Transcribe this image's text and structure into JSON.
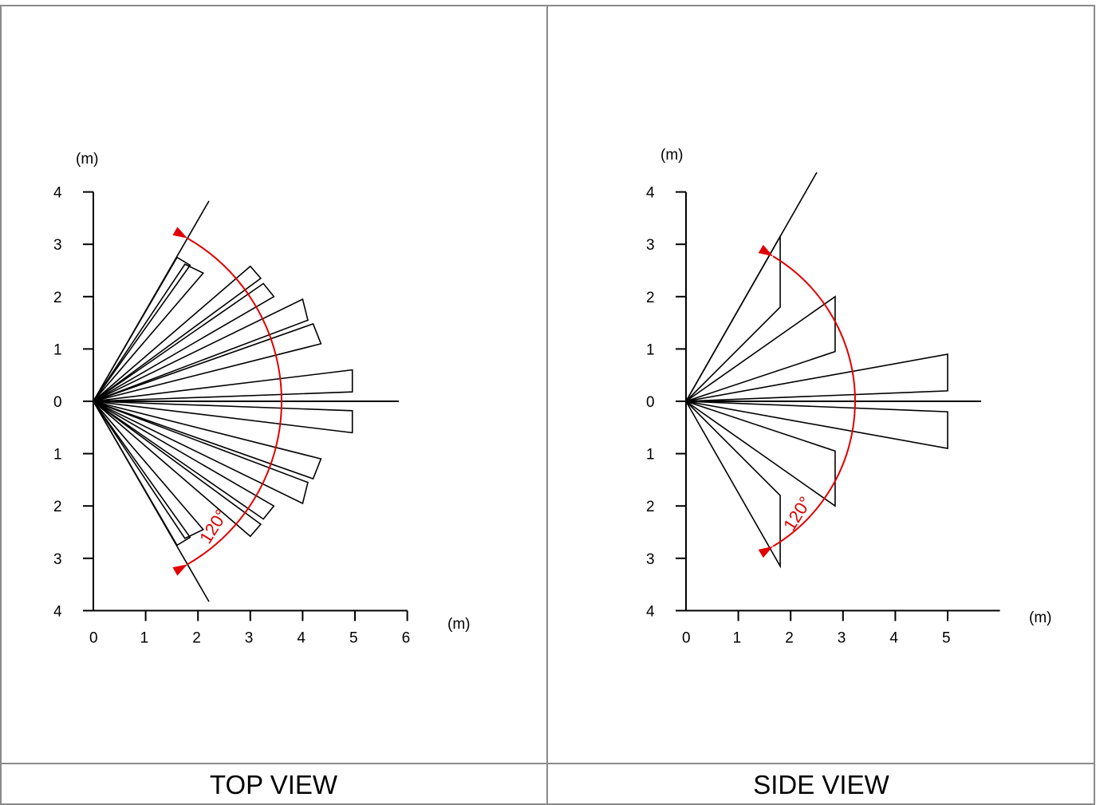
{
  "panels": [
    {
      "id": "top",
      "caption": "TOP VIEW",
      "x_unit": "(m)",
      "y_unit": "(m)",
      "x_ticks": [
        "0",
        "1",
        "2",
        "3",
        "4",
        "5",
        "6"
      ],
      "y_ticks": [
        "4",
        "3",
        "2",
        "1",
        "0",
        "1",
        "2",
        "3",
        "4"
      ],
      "angle_label": "120°",
      "beam_pairs": [
        [
          [
            2.6,
            2.7
          ],
          [
            2.45,
            2.65
          ]
        ],
        [
          [
            1.7,
            2.45
          ],
          [
            1.5,
            2.2
          ]
        ],
        [
          [
            1.65,
            4.05
          ],
          [
            1.3,
            4.25
          ]
        ],
        [
          [
            1.05,
            4.35
          ],
          [
            0.75,
            4.15
          ]
        ],
        [
          [
            0.95,
            5.0
          ],
          [
            0.6,
            5.0
          ]
        ]
      ]
    },
    {
      "id": "side",
      "caption": "SIDE VIEW",
      "x_unit": "(m)",
      "y_unit": "(m)",
      "x_ticks": [
        "0",
        "1",
        "2",
        "3",
        "4",
        "5"
      ],
      "y_ticks": [
        "4",
        "3",
        "2",
        "1",
        "0",
        "1",
        "2",
        "3",
        "4"
      ],
      "angle_label": "120°",
      "beam_quads": [
        [
          3.15,
          1.8,
          1.8,
          1.8
        ],
        [
          2.0,
          2.85,
          0.95,
          2.85
        ],
        [
          0.9,
          5.0,
          0.2,
          5.0
        ]
      ]
    }
  ],
  "colors": {
    "accent": "#e00000",
    "lines": "#000000",
    "grid": "#8a8a8a"
  }
}
